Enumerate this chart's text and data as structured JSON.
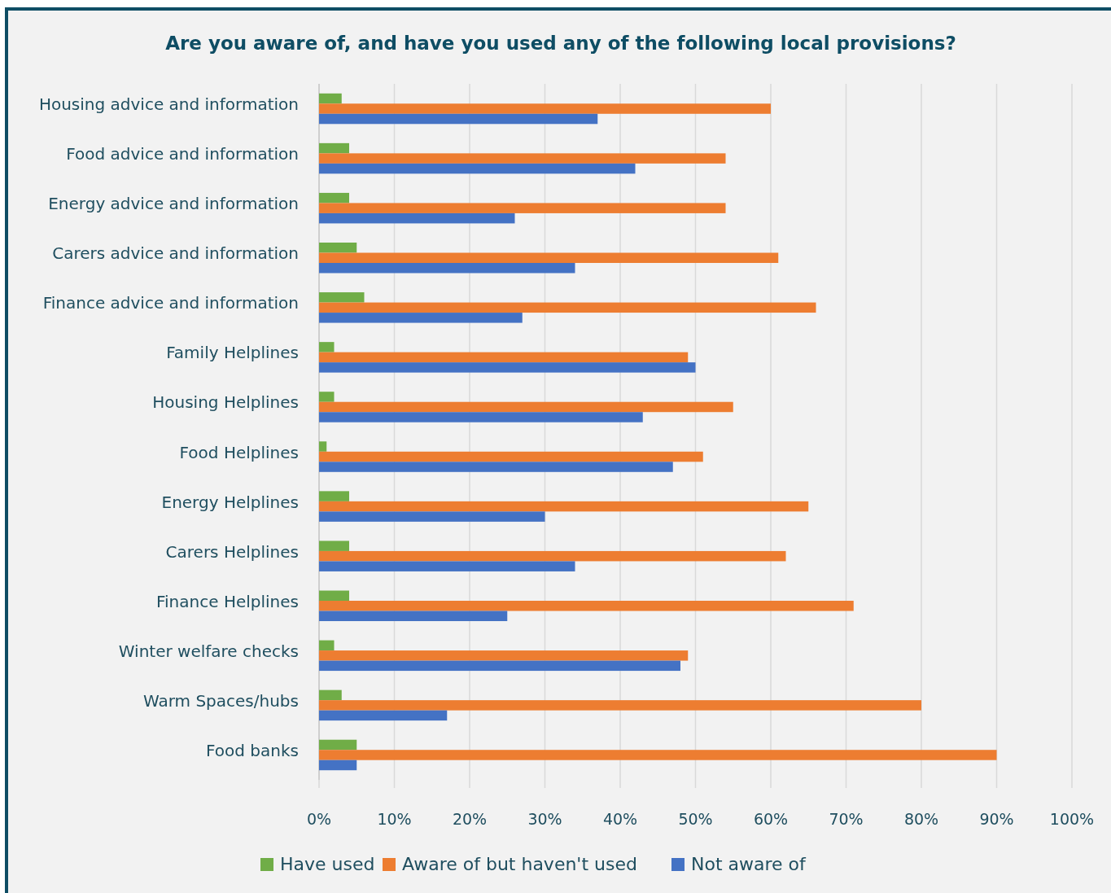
{
  "chart_data": {
    "type": "bar",
    "orientation": "horizontal",
    "title": "Are you aware of, and have you used any of the following local provisions?",
    "categories": [
      "Housing advice and information",
      "Food advice and information",
      "Energy advice and information",
      "Carers advice and information",
      "Finance advice and information",
      "Family Helplines",
      "Housing Helplines",
      "Food Helplines",
      "Energy Helplines",
      "Carers Helplines",
      "Finance Helplines",
      "Winter welfare checks",
      "Warm Spaces/hubs",
      "Food banks"
    ],
    "series": [
      {
        "name": "Have used",
        "color": "#70ad47",
        "values": [
          3,
          4,
          4,
          5,
          6,
          2,
          2,
          1,
          4,
          4,
          4,
          2,
          3,
          5
        ]
      },
      {
        "name": "Aware of but haven't used",
        "color": "#ed7d31",
        "values": [
          60,
          54,
          54,
          61,
          66,
          49,
          55,
          51,
          65,
          62,
          71,
          49,
          80,
          90
        ]
      },
      {
        "name": "Not aware of",
        "color": "#4472c4",
        "values": [
          37,
          42,
          26,
          34,
          27,
          50,
          43,
          47,
          30,
          34,
          25,
          48,
          17,
          5
        ]
      }
    ],
    "xlim": [
      0,
      100
    ],
    "xticks": [
      {
        "value": 0,
        "label": "0%"
      },
      {
        "value": 10,
        "label": "10%"
      },
      {
        "value": 20,
        "label": "20%"
      },
      {
        "value": 30,
        "label": "30%"
      },
      {
        "value": 40,
        "label": "40%"
      },
      {
        "value": 50,
        "label": "50%"
      },
      {
        "value": 60,
        "label": "60%"
      },
      {
        "value": 70,
        "label": "70%"
      },
      {
        "value": 80,
        "label": "80%"
      },
      {
        "value": 90,
        "label": "90%"
      },
      {
        "value": 100,
        "label": "100%"
      }
    ],
    "grid": "x",
    "legend": "bottom"
  }
}
